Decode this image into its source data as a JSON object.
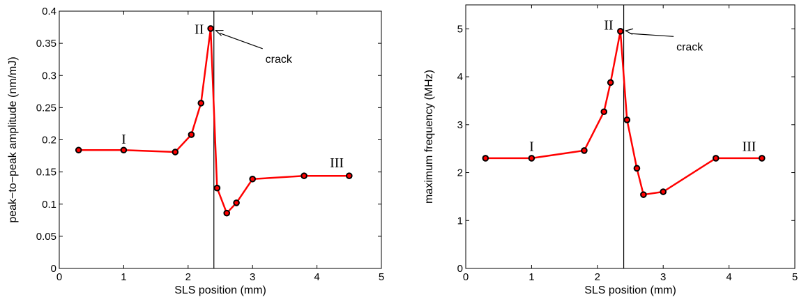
{
  "chart_data": [
    {
      "type": "line",
      "xlabel": "SLS position (mm)",
      "ylabel": "peak−to−peak amplitude (nm/mJ)",
      "xlim": [
        0,
        5
      ],
      "ylim": [
        0,
        0.4
      ],
      "xticks": [
        0,
        1,
        2,
        3,
        4,
        5
      ],
      "xtick_labels": [
        "0",
        "1",
        "2",
        "3",
        "4",
        "5"
      ],
      "yticks": [
        0,
        0.05,
        0.1,
        0.15,
        0.2,
        0.25,
        0.3,
        0.35,
        0.4
      ],
      "ytick_labels": [
        "0",
        "0.05",
        "0.1",
        "0.15",
        "0.2",
        "0.25",
        "0.3",
        "0.35",
        "0.4"
      ],
      "grid": false,
      "series": [
        {
          "x": [
            0.3,
            1.0,
            1.8,
            2.05,
            2.2,
            2.35,
            2.45,
            2.6,
            2.75,
            3.0,
            3.8,
            4.5
          ],
          "y": [
            0.184,
            0.184,
            0.181,
            0.208,
            0.257,
            0.373,
            0.125,
            0.086,
            0.102,
            0.139,
            0.144,
            0.144
          ],
          "color": "#ff0000"
        }
      ],
      "vline_x": 2.4,
      "annotations": [
        {
          "text": "I",
          "x": 1.0,
          "y": 0.194
        },
        {
          "text": "II",
          "x": 2.1,
          "y": 0.365
        },
        {
          "text": "III",
          "x": 4.2,
          "y": 0.157
        },
        {
          "text": "crack",
          "x": 3.2,
          "y": 0.32,
          "arrow_to": [
            2.43,
            0.37
          ]
        }
      ]
    },
    {
      "type": "line",
      "xlabel": "SLS position (mm)",
      "ylabel": "maximum frequency (MHz)",
      "xlim": [
        0,
        5
      ],
      "ylim": [
        0,
        5.5
      ],
      "xticks": [
        0,
        1,
        2,
        3,
        4,
        5
      ],
      "xtick_labels": [
        "0",
        "1",
        "2",
        "3",
        "4",
        "5"
      ],
      "yticks": [
        0,
        1,
        2,
        3,
        4,
        5
      ],
      "ytick_labels": [
        "0",
        "1",
        "2",
        "3",
        "4",
        "5"
      ],
      "grid": false,
      "series": [
        {
          "x": [
            0.3,
            1.0,
            1.8,
            2.1,
            2.2,
            2.35,
            2.45,
            2.6,
            2.7,
            3.0,
            3.8,
            4.5
          ],
          "y": [
            2.3,
            2.3,
            2.46,
            3.27,
            3.88,
            4.95,
            3.1,
            2.09,
            1.54,
            1.6,
            2.3,
            2.3
          ],
          "color": "#ff0000"
        }
      ],
      "vline_x": 2.4,
      "annotations": [
        {
          "text": "I",
          "x": 1.0,
          "y": 2.45
        },
        {
          "text": "II",
          "x": 2.1,
          "y": 4.98
        },
        {
          "text": "III",
          "x": 4.2,
          "y": 2.45
        },
        {
          "text": "crack",
          "x": 3.2,
          "y": 4.55,
          "arrow_to": [
            2.43,
            4.96
          ]
        }
      ]
    }
  ]
}
